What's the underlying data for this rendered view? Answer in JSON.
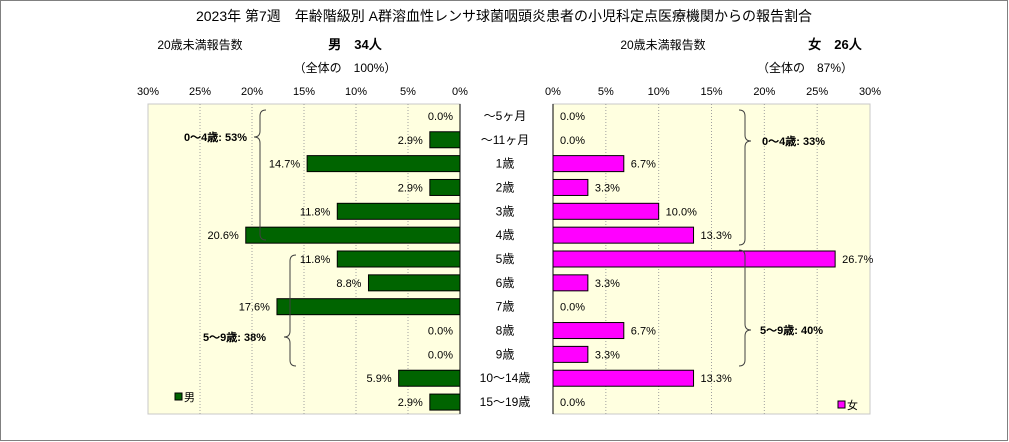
{
  "male_header": {
    "label": "20歳未満報告数",
    "count": "男　34人",
    "share": "（全体の　100%）"
  },
  "female_header": {
    "label": "20歳未満報告数",
    "count": "女　26人",
    "share": "（全体の　87%）"
  },
  "chart_data": {
    "type": "bar",
    "orientation": "horizontal-mirrored",
    "title": "2023年 第7週　年齢階級別 A群溶血性レンサ球菌咽頭炎患者の小児科定点医療機関からの報告割合",
    "categories": [
      "～5ヶ月",
      "～11ヶ月",
      "1歳",
      "2歳",
      "3歳",
      "4歳",
      "5歳",
      "6歳",
      "7歳",
      "8歳",
      "9歳",
      "10～14歳",
      "15～19歳"
    ],
    "xlim": [
      0,
      30
    ],
    "x_ticks": [
      0,
      5,
      10,
      15,
      20,
      25,
      30
    ],
    "x_tick_labels": [
      "0%",
      "5%",
      "10%",
      "15%",
      "20%",
      "25%",
      "30%"
    ],
    "grid": true,
    "series": [
      {
        "name": "男",
        "color": "#006400",
        "legend_placement": "bottom-left",
        "values": [
          0.0,
          2.9,
          14.7,
          2.9,
          11.8,
          20.6,
          11.8,
          8.8,
          17.6,
          0.0,
          0.0,
          5.9,
          2.9
        ],
        "labels": [
          "0.0%",
          "2.9%",
          "14.7%",
          "2.9%",
          "11.8%",
          "20.6%",
          "11.8%",
          "8.8%",
          "17.6%",
          "0.0%",
          "0.0%",
          "5.9%",
          "2.9%"
        ],
        "annotations": [
          {
            "text": "0～4歳: 53%",
            "from": 0,
            "to": 5
          },
          {
            "text": "5～9歳: 38%",
            "from": 6,
            "to": 10
          }
        ]
      },
      {
        "name": "女",
        "color": "#FF00FF",
        "legend_placement": "bottom-right",
        "values": [
          0.0,
          0.0,
          6.7,
          3.3,
          10.0,
          13.3,
          26.7,
          3.3,
          0.0,
          6.7,
          3.3,
          13.3,
          0.0
        ],
        "labels": [
          "0.0%",
          "0.0%",
          "6.7%",
          "3.3%",
          "10.0%",
          "13.3%",
          "26.7%",
          "3.3%",
          "0.0%",
          "6.7%",
          "3.3%",
          "13.3%",
          "0.0%"
        ],
        "annotations": [
          {
            "text": "0～4歳: 33%",
            "from": 0,
            "to": 5
          },
          {
            "text": "5～9歳: 40%",
            "from": 6,
            "to": 10
          }
        ]
      }
    ]
  }
}
